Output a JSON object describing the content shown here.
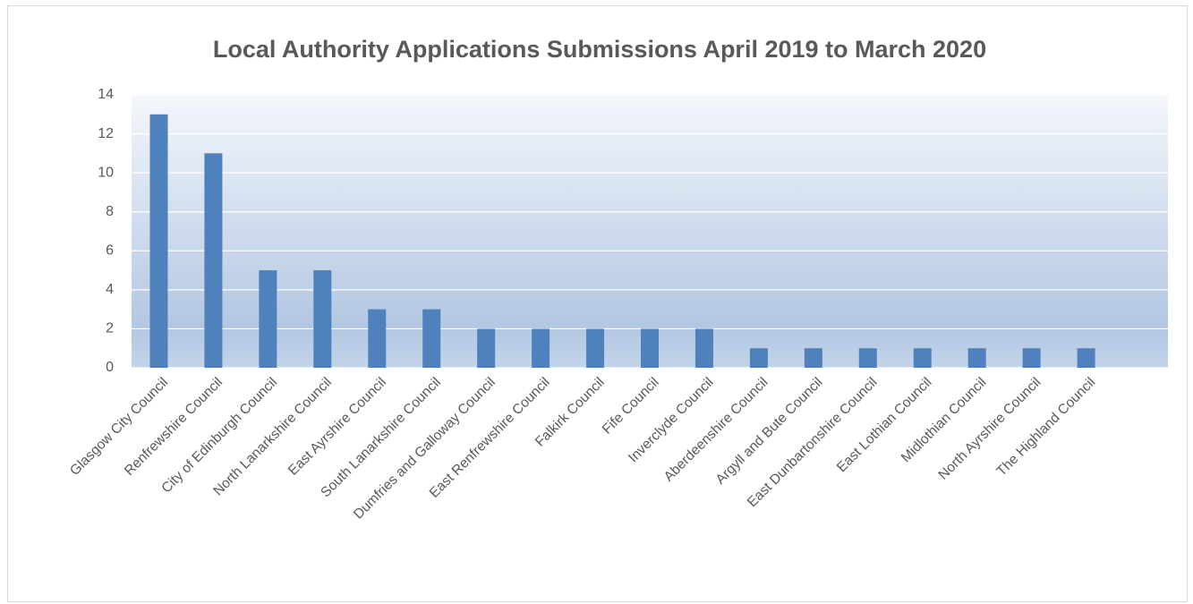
{
  "chart_data": {
    "type": "bar",
    "title": "Local Authority Applications Submissions April 2019 to March 2020",
    "categories": [
      "Glasgow City Council",
      "Renfrewshire Council",
      "City of Edinburgh Council",
      "North Lanarkshire Council",
      "East Ayrshire Council",
      "South Lanarkshire Council",
      "Dumfries and Galloway Council",
      "East Renfrewshire Council",
      "Falkirk Council",
      "Fife Council",
      "Inverclyde Council",
      "Aberdeenshire Council",
      "Argyll and Bute Council",
      "East Dunbartonshire Council",
      "East Lothian Council",
      "Midlothian Council",
      "North Ayrshire Council",
      "The Highland Council",
      null
    ],
    "values": [
      13,
      11,
      5,
      5,
      3,
      3,
      2,
      2,
      2,
      2,
      2,
      1,
      1,
      1,
      1,
      1,
      1,
      1,
      null
    ],
    "color": "#4f81bd",
    "ylim": [
      0,
      14
    ],
    "yticks": [
      0,
      2,
      4,
      6,
      8,
      10,
      12,
      14
    ],
    "grid": true
  }
}
